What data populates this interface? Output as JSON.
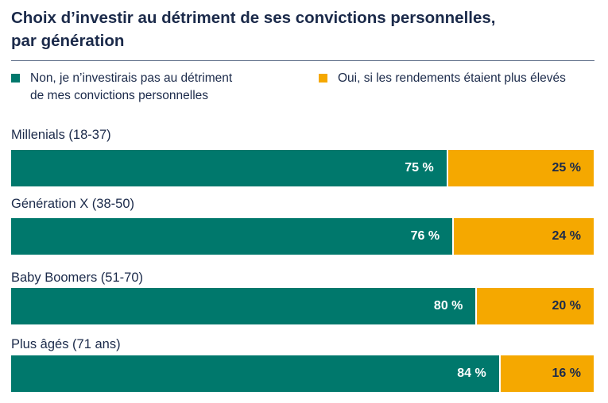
{
  "chart_data": {
    "type": "bar",
    "orientation": "horizontal",
    "stacked": true,
    "title": "Choix d’investir au détriment de ses convictions personnelles, par génération",
    "title_lines": [
      "Choix d’investir au détriment de ses convictions personnelles,",
      "par génération"
    ],
    "categories": [
      "Millenials (18-37)",
      "Génération X (38-50)",
      "Baby Boomers (51-70)",
      "Plus âgés (71 ans)"
    ],
    "series": [
      {
        "name": "Non, je n’investirais pas au détriment de mes convictions personnelles",
        "name_lines": [
          "Non, je n’investirais pas au détriment",
          "de mes convictions personnelles"
        ],
        "color": "#00786c",
        "values": [
          75,
          76,
          80,
          84
        ],
        "labels": [
          "75 %",
          "76 %",
          "80 %",
          "84 %"
        ]
      },
      {
        "name": "Oui, si les rendements étaient plus élevés",
        "name_lines": [
          "Oui, si les rendements étaient plus élevés"
        ],
        "color": "#f5a800",
        "values": [
          25,
          24,
          20,
          16
        ],
        "labels": [
          "25 %",
          "24 %",
          "20 %",
          "16 %"
        ]
      }
    ],
    "xlim": [
      0,
      100
    ],
    "legend_position": "top",
    "grid": false
  }
}
